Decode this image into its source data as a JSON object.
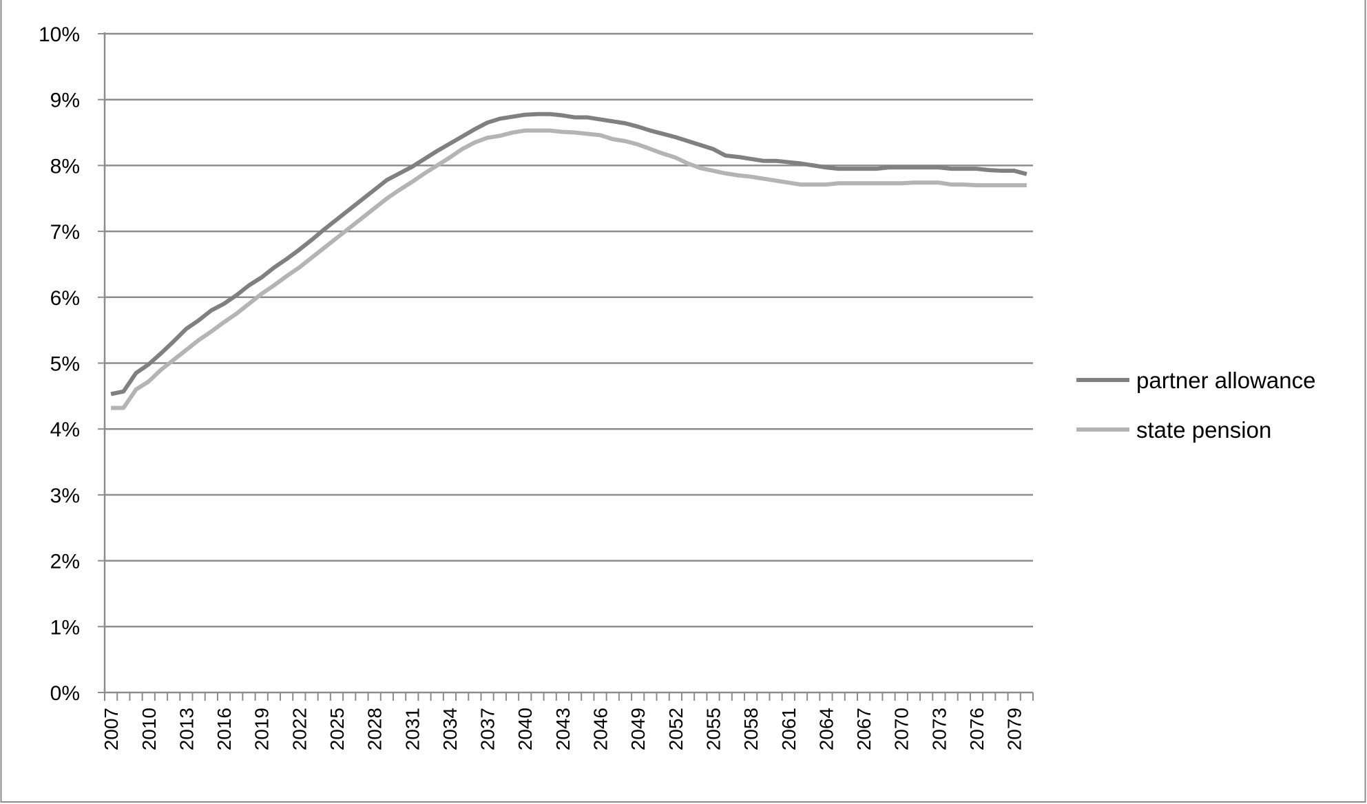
{
  "chart_data": {
    "type": "line",
    "title": "",
    "xlabel": "",
    "ylabel": "",
    "x_start": 2007,
    "x_end": 2080,
    "x_tick_step": 3,
    "x_tick_labels": [
      "2007",
      "2010",
      "2013",
      "2016",
      "2019",
      "2022",
      "2025",
      "2028",
      "2031",
      "2034",
      "2037",
      "2040",
      "2043",
      "2046",
      "2049",
      "2052",
      "2055",
      "2058",
      "2061",
      "2064",
      "2067",
      "2070",
      "2073",
      "2076",
      "2079"
    ],
    "y_tick_labels": [
      "0%",
      "1%",
      "2%",
      "3%",
      "4%",
      "5%",
      "6%",
      "7%",
      "8%",
      "9%",
      "10%"
    ],
    "ylim": [
      0,
      10
    ],
    "grid": true,
    "legend_position": "right",
    "series": [
      {
        "name": "partner allowance",
        "color": "#808080",
        "values": [
          4.53,
          4.57,
          4.85,
          4.98,
          5.15,
          5.33,
          5.52,
          5.65,
          5.8,
          5.9,
          6.03,
          6.18,
          6.3,
          6.45,
          6.58,
          6.72,
          6.87,
          7.03,
          7.18,
          7.33,
          7.48,
          7.63,
          7.78,
          7.88,
          7.98,
          8.1,
          8.22,
          8.33,
          8.44,
          8.55,
          8.65,
          8.71,
          8.74,
          8.77,
          8.78,
          8.78,
          8.76,
          8.73,
          8.73,
          8.7,
          8.67,
          8.64,
          8.59,
          8.53,
          8.48,
          8.43,
          8.37,
          8.31,
          8.25,
          8.15,
          8.13,
          8.1,
          8.07,
          8.07,
          8.05,
          8.03,
          8.0,
          7.97,
          7.95,
          7.95,
          7.95,
          7.95,
          7.97,
          7.97,
          7.97,
          7.97,
          7.97,
          7.95,
          7.95,
          7.95,
          7.93,
          7.92,
          7.92,
          7.87
        ]
      },
      {
        "name": "state pension",
        "color": "#b4b4b4",
        "values": [
          4.32,
          4.32,
          4.6,
          4.72,
          4.9,
          5.05,
          5.2,
          5.35,
          5.48,
          5.62,
          5.75,
          5.9,
          6.05,
          6.18,
          6.32,
          6.45,
          6.6,
          6.75,
          6.9,
          7.05,
          7.2,
          7.35,
          7.5,
          7.63,
          7.75,
          7.88,
          8.0,
          8.12,
          8.25,
          8.35,
          8.42,
          8.45,
          8.5,
          8.53,
          8.53,
          8.53,
          8.51,
          8.5,
          8.48,
          8.46,
          8.4,
          8.37,
          8.32,
          8.25,
          8.18,
          8.12,
          8.03,
          7.96,
          7.92,
          7.88,
          7.85,
          7.83,
          7.8,
          7.77,
          7.74,
          7.71,
          7.71,
          7.71,
          7.73,
          7.73,
          7.73,
          7.73,
          7.73,
          7.73,
          7.74,
          7.74,
          7.74,
          7.71,
          7.71,
          7.7,
          7.7,
          7.7,
          7.7,
          7.7
        ]
      }
    ]
  }
}
